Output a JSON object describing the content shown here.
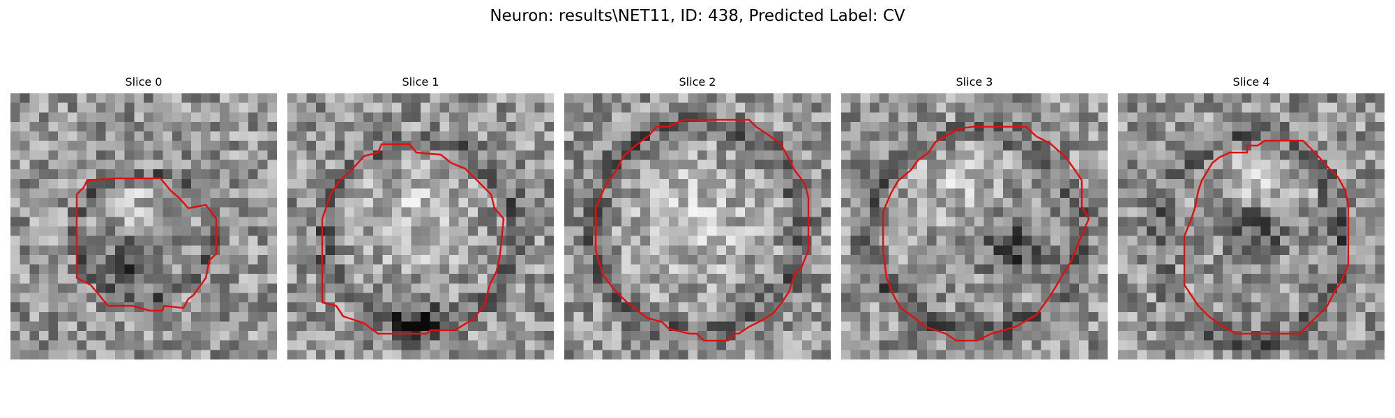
{
  "figure": {
    "title": "Neuron: results\\NET11, ID: 438, Predicted Label: CV",
    "contour_color": "#e01010",
    "colormap": "gray",
    "panels": [
      {
        "title": "Slice 0"
      },
      {
        "title": "Slice 1"
      },
      {
        "title": "Slice 2"
      },
      {
        "title": "Slice 3"
      },
      {
        "title": "Slice 4"
      }
    ]
  }
}
